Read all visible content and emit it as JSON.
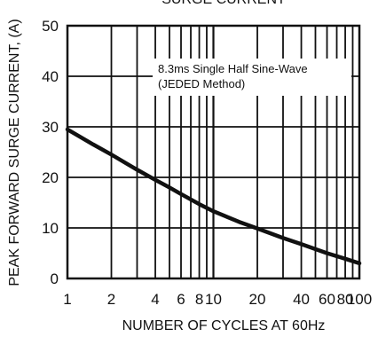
{
  "chart_data": {
    "type": "line",
    "title": "SURGE CURRENT",
    "xlabel": "NUMBER OF CYCLES AT 60Hz",
    "ylabel": "PEAK FORWARD SURGE CURRENT, (A)",
    "x_scale": "log",
    "xlim": [
      1,
      100
    ],
    "ylim": [
      0,
      50
    ],
    "grid": true,
    "x_ticks": [
      1,
      2,
      4,
      6,
      8,
      10,
      20,
      40,
      60,
      80,
      100
    ],
    "x_tick_labels": [
      "1",
      "2",
      "4",
      "6",
      "8",
      "10",
      "20",
      "40",
      "60",
      "80",
      "100"
    ],
    "y_ticks": [
      0,
      10,
      20,
      30,
      40,
      50
    ],
    "y_tick_labels": [
      "0",
      "10",
      "20",
      "30",
      "40",
      "50"
    ],
    "annotations": [
      "8.3ms Single Half Sine-Wave",
      "(JEDED Method)"
    ],
    "series": [
      {
        "x": [
          1,
          1.5,
          2,
          3,
          4,
          5,
          6,
          8,
          10,
          15,
          20,
          30,
          40,
          60,
          80,
          100
        ],
        "y": [
          29.5,
          26.5,
          24.5,
          21.5,
          19.5,
          18,
          16.7,
          14.7,
          13.3,
          11.2,
          9.9,
          8,
          6.8,
          5,
          3.9,
          3
        ]
      }
    ]
  },
  "colors": {
    "line": "#111111",
    "grid": "#111111",
    "background": "#ffffff"
  }
}
